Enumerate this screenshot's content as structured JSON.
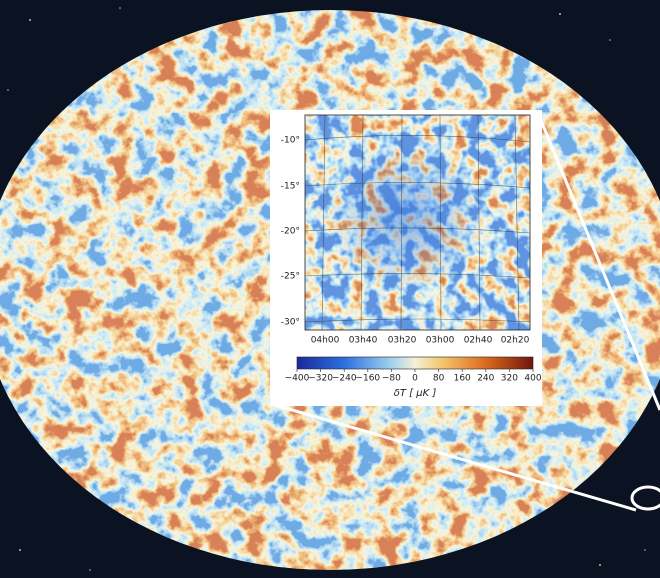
{
  "inset": {
    "y_ticks": [
      "-10°",
      "-15°",
      "-20°",
      "-25°",
      "-30°"
    ],
    "x_ticks": [
      "04h00",
      "03h40",
      "03h20",
      "03h00",
      "02h40",
      "02h20"
    ],
    "colorbar": {
      "range": [
        -400,
        400
      ],
      "ticks": [
        {
          "value": -400,
          "label": "−400"
        },
        {
          "value": -320,
          "label": "−320"
        },
        {
          "value": -240,
          "label": "−240"
        },
        {
          "value": -160,
          "label": "−160"
        },
        {
          "value": -80,
          "label": "−80"
        },
        0,
        80,
        160,
        240,
        320,
        400
      ],
      "label": "δT [ μK ]"
    }
  }
}
